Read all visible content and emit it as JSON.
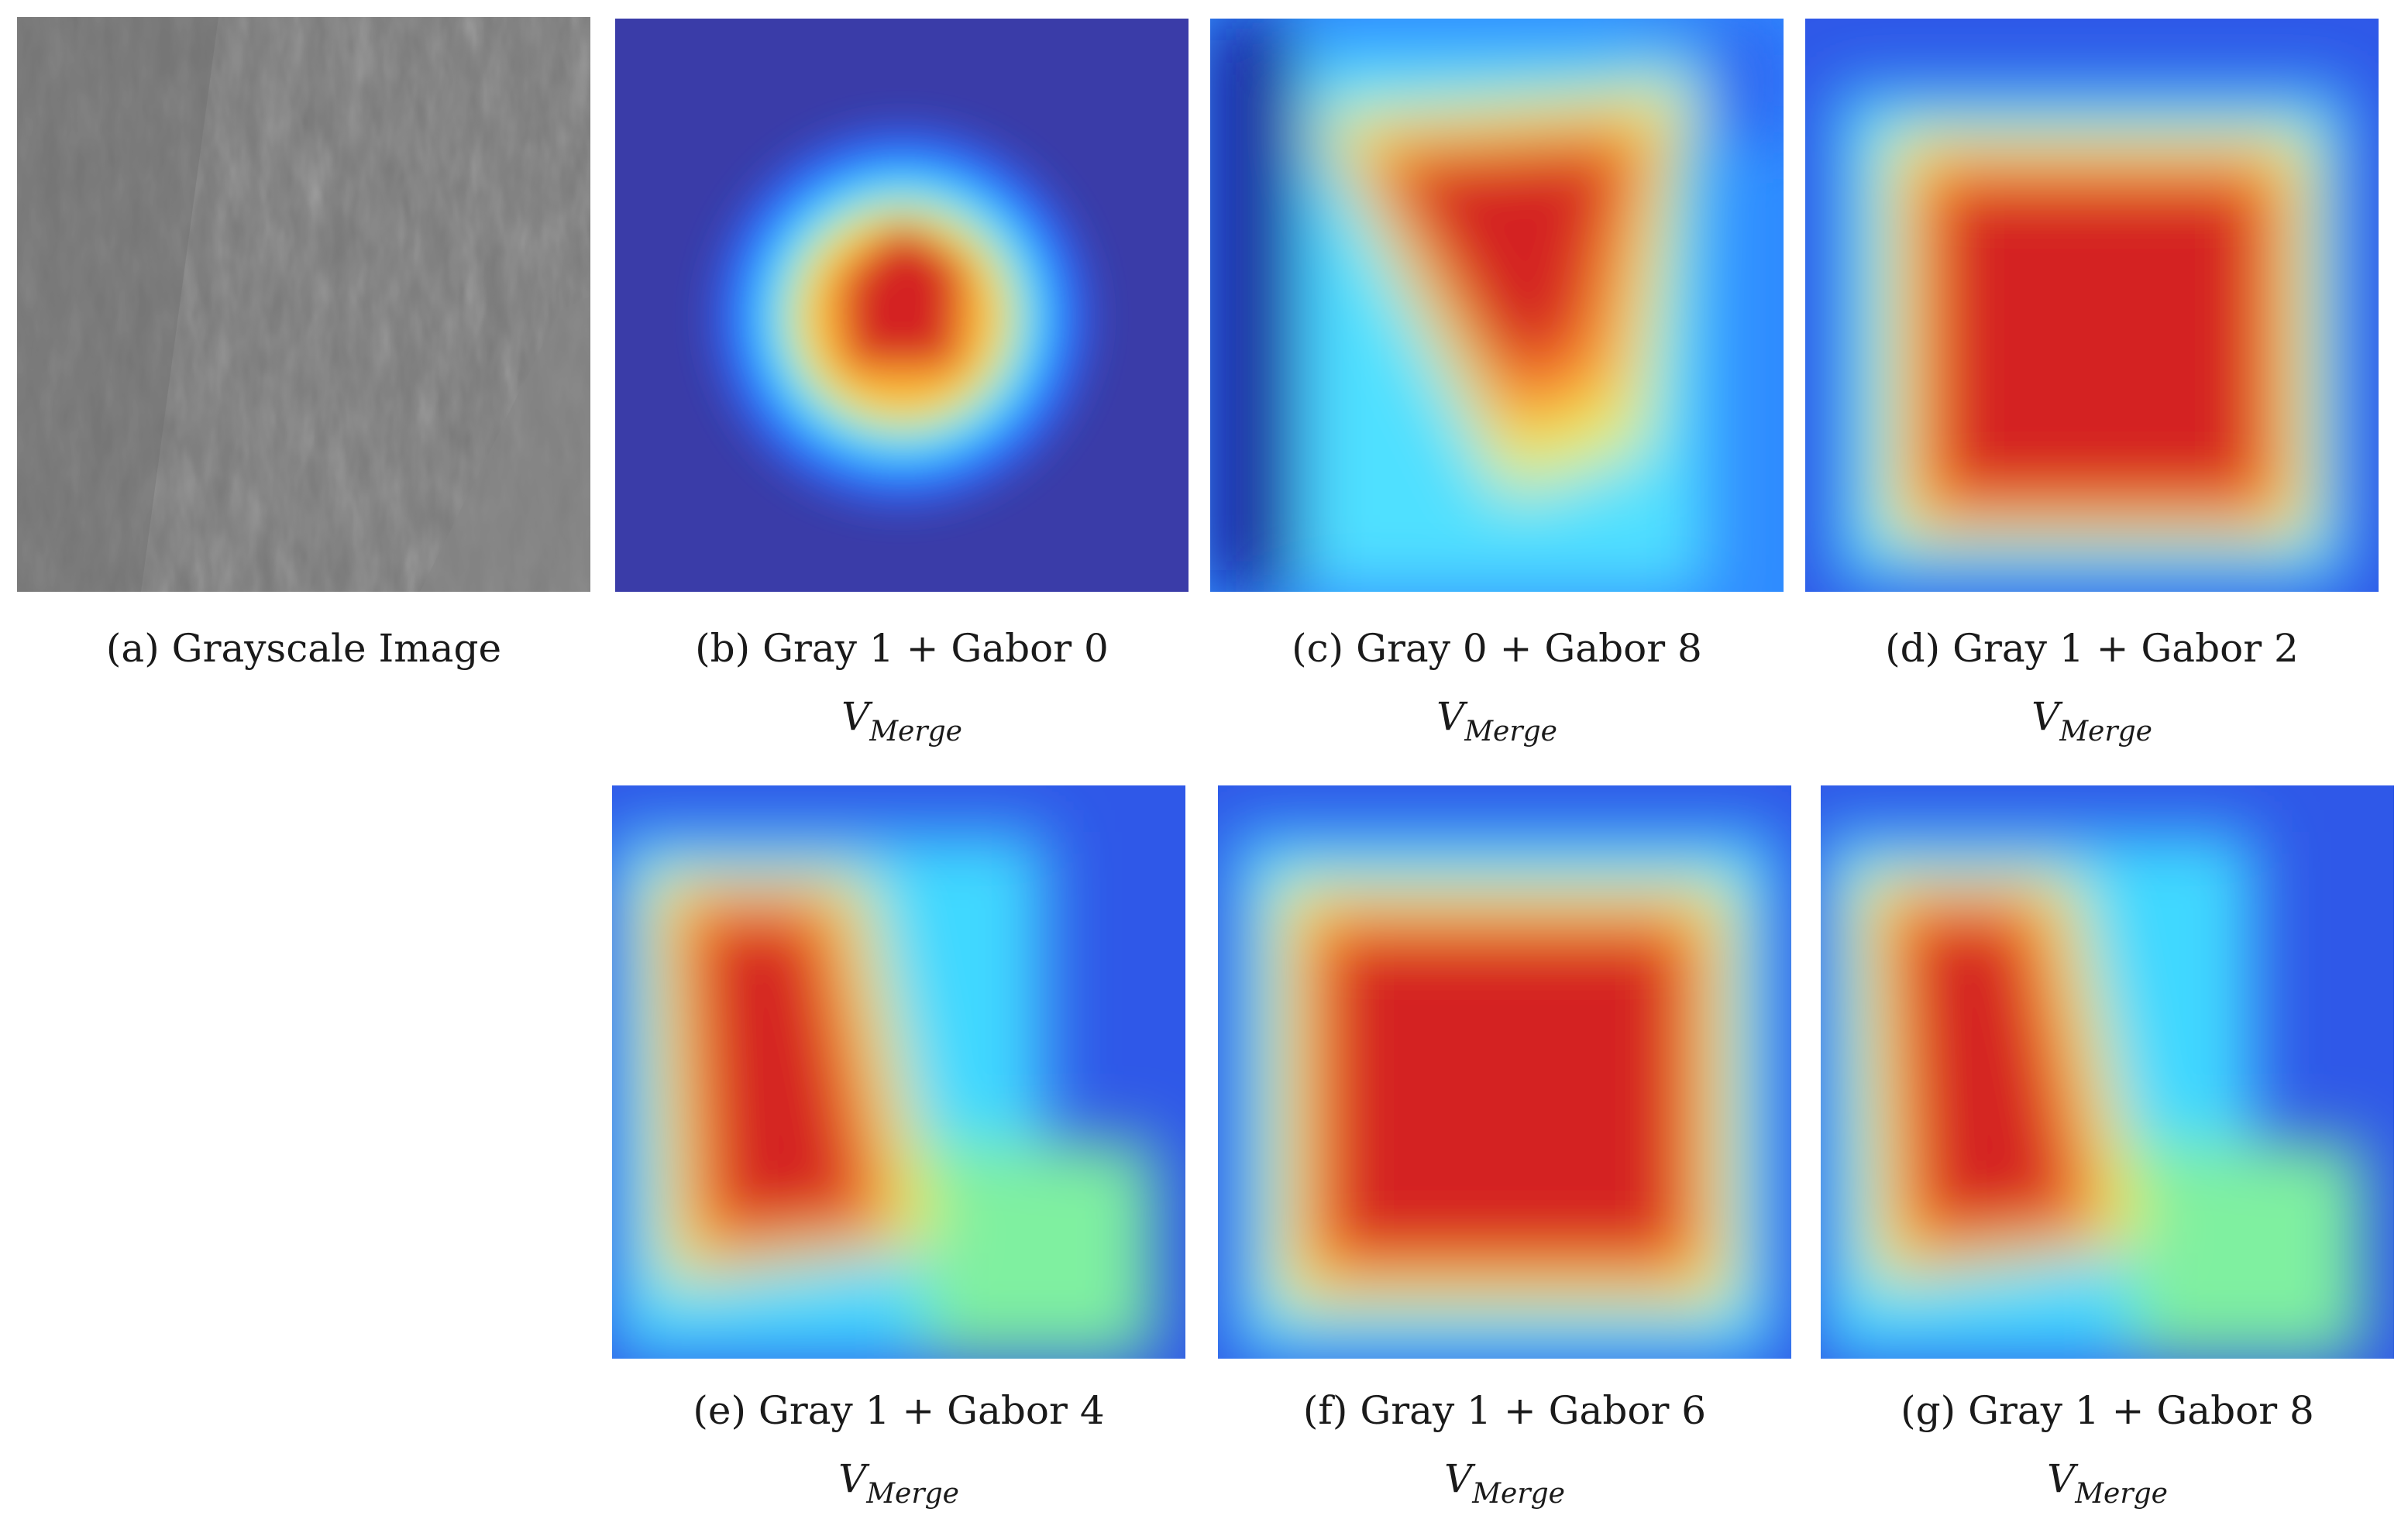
{
  "figure": {
    "panels": [
      {
        "id": "a",
        "caption": "(a) Grayscale Image",
        "subcaption_main": "",
        "subcaption_sub": "",
        "pattern": "grayscale"
      },
      {
        "id": "b",
        "caption": "(b) Gray 1 + Gabor 0",
        "subcaption_main": "V",
        "subcaption_sub": "Merge",
        "pattern": "heatmap-small-blob"
      },
      {
        "id": "c",
        "caption": "(c) Gray 0 + Gabor 8",
        "subcaption_main": "V",
        "subcaption_sub": "Merge",
        "pattern": "heatmap-triangle"
      },
      {
        "id": "d",
        "caption": "(d) Gray 1 + Gabor 2",
        "subcaption_main": "V",
        "subcaption_sub": "Merge",
        "pattern": "heatmap-square"
      },
      {
        "id": "e",
        "caption": "(e) Gray 1 + Gabor 4",
        "subcaption_main": "V",
        "subcaption_sub": "Merge",
        "pattern": "heatmap-left-bar"
      },
      {
        "id": "f",
        "caption": "(f) Gray 1 + Gabor 6",
        "subcaption_main": "V",
        "subcaption_sub": "Merge",
        "pattern": "heatmap-wide-square"
      },
      {
        "id": "g",
        "caption": "(g) Gray 1 + Gabor 8",
        "subcaption_main": "V",
        "subcaption_sub": "Merge",
        "pattern": "heatmap-left-bar"
      }
    ],
    "colormap": [
      "#2b2fb0",
      "#2f6cff",
      "#3fd8ff",
      "#b8f06a",
      "#ffd23a",
      "#ff6a2a",
      "#d42020"
    ]
  }
}
